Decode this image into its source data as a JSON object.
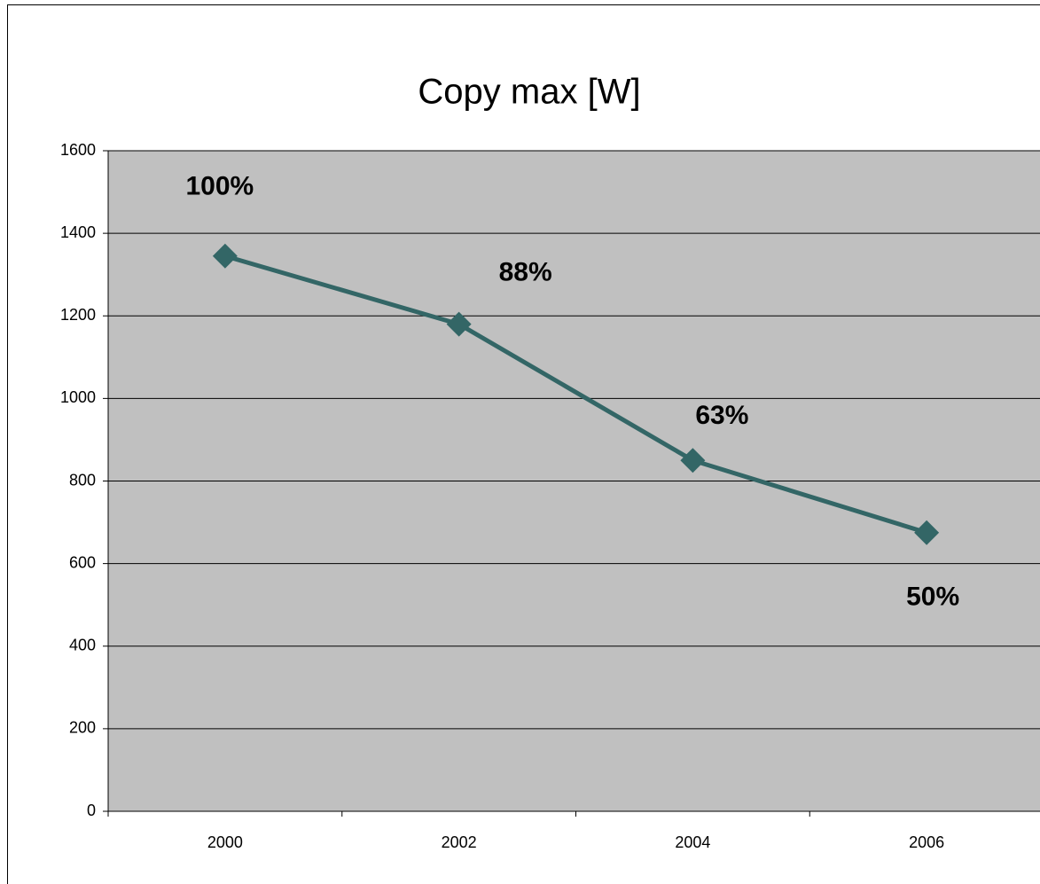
{
  "chart_data": {
    "type": "line",
    "title": "Copy max [W]",
    "categories": [
      "2000",
      "2002",
      "2004",
      "2006"
    ],
    "series": [
      {
        "name": null,
        "color": "#336666",
        "values": [
          1345,
          1180,
          850,
          675
        ]
      }
    ],
    "annotations": [
      "100%",
      "88%",
      "63%",
      "50%"
    ],
    "ylim": [
      0,
      1600
    ],
    "yticks": [
      0,
      200,
      400,
      600,
      800,
      1000,
      1200,
      1400,
      1600
    ],
    "grid": true,
    "plot_background": "#c0c0c0"
  }
}
